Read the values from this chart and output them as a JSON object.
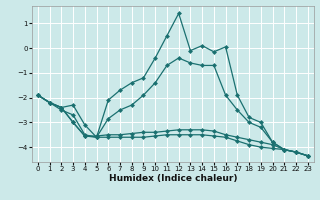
{
  "xlabel": "Humidex (Indice chaleur)",
  "bg_color": "#cce9e9",
  "grid_color": "#ffffff",
  "line_color": "#1a7070",
  "xlim": [
    -0.5,
    23.5
  ],
  "ylim": [
    -4.6,
    1.7
  ],
  "yticks": [
    -4,
    -3,
    -2,
    -1,
    0,
    1
  ],
  "xticks": [
    0,
    1,
    2,
    3,
    4,
    5,
    6,
    7,
    8,
    9,
    10,
    11,
    12,
    13,
    14,
    15,
    16,
    17,
    18,
    19,
    20,
    21,
    22,
    23
  ],
  "line1_x": [
    0,
    1,
    2,
    3,
    4,
    5,
    6,
    7,
    8,
    9,
    10,
    11,
    12,
    13,
    14,
    15,
    16,
    17,
    18,
    19,
    20,
    21,
    22,
    23
  ],
  "line1_y": [
    -1.9,
    -2.2,
    -2.4,
    -2.3,
    -3.1,
    -3.6,
    -2.1,
    -1.7,
    -1.4,
    -1.2,
    -0.4,
    0.5,
    1.4,
    -0.1,
    0.1,
    -0.15,
    0.05,
    -1.9,
    -2.8,
    -3.0,
    -3.8,
    -4.1,
    -4.2,
    -4.35
  ],
  "line2_x": [
    0,
    1,
    2,
    3,
    4,
    5,
    6,
    7,
    8,
    9,
    10,
    11,
    12,
    13,
    14,
    15,
    16,
    17,
    18,
    19,
    20,
    21,
    22,
    23
  ],
  "line2_y": [
    -1.9,
    -2.2,
    -2.5,
    -2.7,
    -3.5,
    -3.6,
    -2.85,
    -2.5,
    -2.3,
    -1.9,
    -1.4,
    -0.7,
    -0.4,
    -0.6,
    -0.7,
    -0.7,
    -1.9,
    -2.5,
    -3.0,
    -3.2,
    -3.8,
    -4.1,
    -4.2,
    -4.35
  ],
  "line3_x": [
    0,
    1,
    2,
    3,
    4,
    5,
    6,
    7,
    8,
    9,
    10,
    11,
    12,
    13,
    14,
    15,
    16,
    17,
    18,
    19,
    20,
    21,
    22,
    23
  ],
  "line3_y": [
    -1.9,
    -2.2,
    -2.4,
    -3.0,
    -3.55,
    -3.55,
    -3.5,
    -3.5,
    -3.45,
    -3.4,
    -3.4,
    -3.35,
    -3.3,
    -3.3,
    -3.3,
    -3.35,
    -3.5,
    -3.6,
    -3.7,
    -3.8,
    -3.9,
    -4.1,
    -4.2,
    -4.35
  ],
  "line4_x": [
    0,
    1,
    2,
    3,
    4,
    5,
    6,
    7,
    8,
    9,
    10,
    11,
    12,
    13,
    14,
    15,
    16,
    17,
    18,
    19,
    20,
    21,
    22,
    23
  ],
  "line4_y": [
    -1.9,
    -2.2,
    -2.4,
    -3.0,
    -3.55,
    -3.6,
    -3.6,
    -3.6,
    -3.6,
    -3.6,
    -3.55,
    -3.5,
    -3.5,
    -3.5,
    -3.5,
    -3.55,
    -3.6,
    -3.75,
    -3.9,
    -4.0,
    -4.05,
    -4.1,
    -4.2,
    -4.35
  ]
}
